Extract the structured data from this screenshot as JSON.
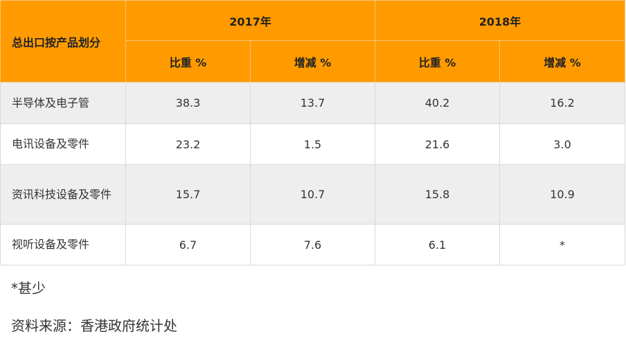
{
  "table": {
    "header": {
      "row_label": "总出口按产品划分",
      "groups": [
        "2017年",
        "2018年"
      ],
      "subcolumns": [
        "比重 %",
        "增减 %",
        "比重 %",
        "增减 %"
      ]
    },
    "rows": [
      [
        "半导体及电子管",
        "38.3",
        "13.7",
        "40.2",
        "16.2"
      ],
      [
        "电讯设备及零件",
        "23.2",
        "1.5",
        "21.6",
        "3.0"
      ],
      [
        "资讯科技设备及零件",
        "15.7",
        "10.7",
        "15.8",
        "10.9"
      ],
      [
        "视听设备及零件",
        "6.7",
        "7.6",
        "6.1",
        "*"
      ]
    ]
  },
  "notes": [
    "*甚少",
    "资料来源：香港政府统计处"
  ]
}
